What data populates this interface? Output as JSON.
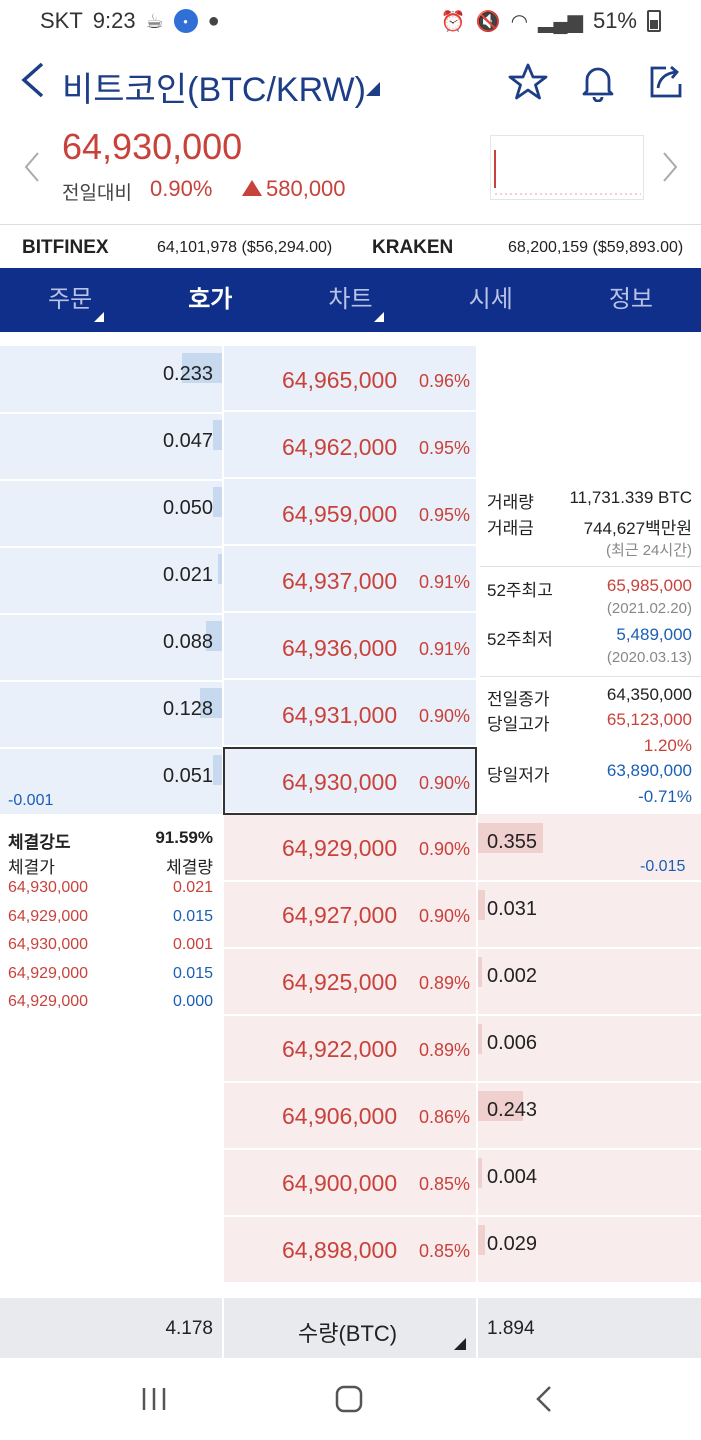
{
  "status": {
    "carrier": "SKT",
    "time": "9:23",
    "battery": "51%"
  },
  "header": {
    "title": "비트코인(BTC/KRW)"
  },
  "price": {
    "current": "64,930,000",
    "label": "전일대비",
    "pct": "0.90%",
    "diff": "580,000"
  },
  "exchanges": [
    {
      "name": "BITFINEX",
      "value": "64,101,978 ($56,294.00)"
    },
    {
      "name": "KRAKEN",
      "value": "68,200,159 ($59,893.00)"
    }
  ],
  "tabs": [
    {
      "label": "주문"
    },
    {
      "label": "호가"
    },
    {
      "label": "차트"
    },
    {
      "label": "시세"
    },
    {
      "label": "정보"
    }
  ],
  "asks": [
    {
      "qty": "0.233",
      "price": "64,965,000",
      "pct": "0.96%",
      "bar": 0.18
    },
    {
      "qty": "0.047",
      "price": "64,962,000",
      "pct": "0.95%",
      "bar": 0.04
    },
    {
      "qty": "0.050",
      "price": "64,959,000",
      "pct": "0.95%",
      "bar": 0.04
    },
    {
      "qty": "0.021",
      "price": "64,937,000",
      "pct": "0.91%",
      "bar": 0.02
    },
    {
      "qty": "0.088",
      "price": "64,936,000",
      "pct": "0.91%",
      "bar": 0.07
    },
    {
      "qty": "0.128",
      "price": "64,931,000",
      "pct": "0.90%",
      "bar": 0.1
    },
    {
      "qty": "0.051",
      "price": "64,930,000",
      "pct": "0.90%",
      "bar": 0.04
    }
  ],
  "ask_change": "-0.001",
  "bids": [
    {
      "qty": "0.355",
      "price": "64,929,000",
      "pct": "0.90%",
      "bar": 0.29
    },
    {
      "qty": "0.031",
      "price": "64,927,000",
      "pct": "0.90%",
      "bar": 0.03
    },
    {
      "qty": "0.002",
      "price": "64,925,000",
      "pct": "0.89%",
      "bar": 0.0
    },
    {
      "qty": "0.006",
      "price": "64,922,000",
      "pct": "0.89%",
      "bar": 0.0
    },
    {
      "qty": "0.243",
      "price": "64,906,000",
      "pct": "0.86%",
      "bar": 0.2
    },
    {
      "qty": "0.004",
      "price": "64,900,000",
      "pct": "0.85%",
      "bar": 0.0
    },
    {
      "qty": "0.029",
      "price": "64,898,000",
      "pct": "0.85%",
      "bar": 0.03
    }
  ],
  "bid_change": "-0.015",
  "info": {
    "volume_label": "거래량",
    "volume_value": "11,731.339 BTC",
    "amount_label": "거래금",
    "amount_value": "744,627백만원",
    "period_note": "(최근 24시간)",
    "high52_label": "52주최고",
    "high52_value": "65,985,000",
    "high52_date": "(2021.02.20)",
    "low52_label": "52주최저",
    "low52_value": "5,489,000",
    "low52_date": "(2020.03.13)",
    "prev_close_label": "전일종가",
    "prev_close_value": "64,350,000",
    "day_high_label": "당일고가",
    "day_high_value": "65,123,000",
    "day_high_pct": "1.20%",
    "day_low_label": "당일저가",
    "day_low_value": "63,890,000",
    "day_low_pct": "-0.71%"
  },
  "trades": {
    "strength_label": "체결강도",
    "strength_value": "91.59%",
    "price_header": "체결가",
    "qty_header": "체결량",
    "rows": [
      {
        "price": "64,930,000",
        "qty": "0.021",
        "side": "buy"
      },
      {
        "price": "64,929,000",
        "qty": "0.015",
        "side": "sell"
      },
      {
        "price": "64,930,000",
        "qty": "0.001",
        "side": "buy"
      },
      {
        "price": "64,929,000",
        "qty": "0.015",
        "side": "sell"
      },
      {
        "price": "64,929,000",
        "qty": "0.000",
        "side": "sell"
      }
    ]
  },
  "footer": {
    "ask_total": "4.178",
    "unit_label": "수량(BTC)",
    "bid_total": "1.894"
  }
}
